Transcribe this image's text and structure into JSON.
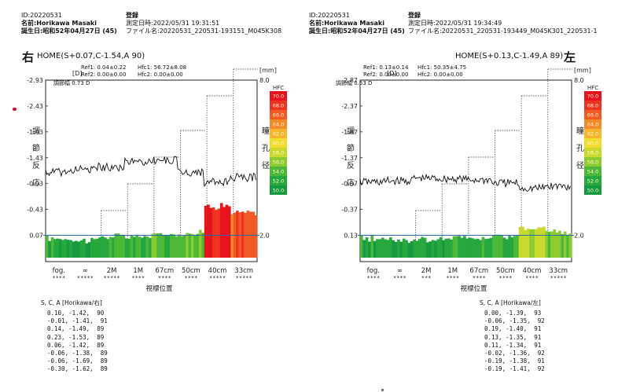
{
  "left": {
    "id_line": "ID:20220531",
    "name_line": "名前:Horikawa Masaki",
    "birth_line": "誕生日:昭和52年04月27日 (45)",
    "reg_label": "登録",
    "datetime_line": "測定日時:2022/05/31 19:31:51",
    "file_line": "ファイル名:20220531_220531-193151_M045K308",
    "side": "右",
    "home_title": "HOME(S+0.07,C-1.54,A 90)",
    "ref1": "Ref1: 0.04±0.22",
    "ref2": "Ref2: 0.00±0.00",
    "hfc1": "Hfc1: 56.72±8.08",
    "hfc2": "Hfc2: 0.00±0.00",
    "adjust": "調節幅 0.73 D",
    "sca_header": "S, C, A [Horikawa/右]",
    "sca_rows": [
      "0.10, -1.42,  90",
      "-0.01, -1.41,  91",
      "0.14, -1.49,  89",
      "0.23, -1.53,  89",
      "0.06, -1.42,  89",
      "-0.06, -1.38,  89",
      "-0.06, -1.69,  89",
      "-0.30, -1.62,  89"
    ]
  },
  "right": {
    "id_line": "ID:20220531",
    "name_line": "名前:Horikawa Masaki",
    "birth_line": "誕生日:昭和52年04月27日 (45)",
    "reg_label": "登録",
    "datetime_line": "測定日時:2022/05/31 19:34:49",
    "file_line": "ファイル名:20220531_220531-193449_M045K301_220531-1",
    "side": "左",
    "home_title": "HOME(S+0.13,C-1.49,A 89)",
    "ref1": "Ref1: 0.13±0.14",
    "ref2": "Ref2: 0.00±0.00",
    "hfc1": "Hfc1: 50.35±4.75",
    "hfc2": "Hfc2: 0.00±0.00",
    "adjust": "調節幅 0.53 D",
    "sca_header": "S, C, A [Horikawa/左]",
    "sca_rows": [
      "0.00, -1.39,  93",
      "-0.06, -1.35,  92",
      "0.19, -1.40,  91",
      "0.13, -1.35,  91",
      "0.11, -1.34,  91",
      "-0.02, -1.36,  92",
      "-0.19, -1.38,  91",
      "-0.19, -1.41,  92"
    ]
  },
  "chart_data": [
    {
      "type": "line",
      "title": "HOME(S+0.07,C-1.54,A 90)",
      "y_left_label": "調節反応",
      "y_left_unit": "[D]",
      "y_left_ticks": [
        -2.93,
        -2.43,
        -1.93,
        -1.43,
        -0.93,
        -0.43,
        0.07
      ],
      "y_right_label": "瞳孔径",
      "y_right_unit": "[mm]",
      "y_right_ticks": [
        8.0,
        2.0
      ],
      "x_label": "視標位置",
      "x_ticks": [
        "fog.",
        "∞",
        "2M",
        "1M",
        "67cm",
        "50cm",
        "40cm",
        "33cm"
      ],
      "x_marks": [
        "****",
        "*****",
        "*****",
        "****",
        "****",
        "****",
        "*****",
        "*****"
      ],
      "legend_title": "HFC",
      "legend_values": [
        70.0,
        68.0,
        66.0,
        64.0,
        62.0,
        60.0,
        58.0,
        56.0,
        54.0,
        52.0,
        50.0
      ],
      "legend_colors": [
        "#e8121c",
        "#ee3320",
        "#f05a24",
        "#f48a28",
        "#f7b52c",
        "#f2dc2e",
        "#c9da2c",
        "#8ccc30",
        "#4cb838",
        "#26a83e",
        "#169a40"
      ],
      "target_D": [
        0.0,
        0.0,
        0.5,
        1.0,
        1.5,
        2.0,
        2.5,
        3.0
      ],
      "response_D": [
        -1.15,
        -1.2,
        -1.25,
        -1.35,
        -1.38,
        -1.15,
        -0.95,
        -1.05
      ],
      "hfc_by_target": [
        52.0,
        51.0,
        53.0,
        53.0,
        54.0,
        55.0,
        70.0,
        66.0
      ]
    },
    {
      "type": "line",
      "title": "HOME(S+0.13,C-1.49,A 89)",
      "y_left_label": "調節反応",
      "y_left_unit": "[D]",
      "y_left_ticks": [
        -2.87,
        -2.37,
        -1.87,
        -1.37,
        -0.87,
        -0.37,
        0.13
      ],
      "y_right_label": "瞳孔径",
      "y_right_unit": "[mm]",
      "y_right_ticks": [
        8.0,
        2.0
      ],
      "x_label": "視標位置",
      "x_ticks": [
        "fog.",
        "∞",
        "2M",
        "1M",
        "67cm",
        "50cm",
        "40cm",
        "33cm"
      ],
      "x_marks": [
        "****",
        "****",
        "***",
        "****",
        "****",
        "****",
        "****",
        "*****"
      ],
      "legend_title": "HFC",
      "legend_values": [
        70.0,
        68.0,
        66.0,
        64.0,
        62.0,
        60.0,
        58.0,
        56.0,
        54.0,
        52.0,
        50.0
      ],
      "legend_colors": [
        "#e8121c",
        "#ee3320",
        "#f05a24",
        "#f48a28",
        "#f7b52c",
        "#f2dc2e",
        "#c9da2c",
        "#8ccc30",
        "#4cb838",
        "#26a83e",
        "#169a40"
      ],
      "target_D": [
        0.0,
        0.0,
        0.5,
        1.0,
        1.5,
        2.0,
        2.5,
        3.0
      ],
      "response_D": [
        -0.9,
        -0.92,
        -0.97,
        -0.96,
        -0.94,
        -0.88,
        -0.78,
        -0.82
      ],
      "hfc_by_target": [
        52.0,
        51.0,
        51.0,
        52.0,
        52.0,
        53.0,
        58.0,
        55.0
      ]
    }
  ]
}
